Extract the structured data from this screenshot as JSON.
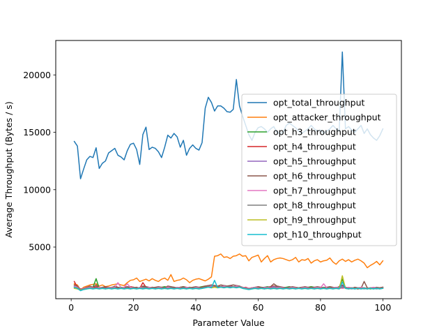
{
  "chart_data": {
    "type": "line",
    "xlabel": "Parameter Value",
    "ylabel": "Average Throughput (Bytes / s)",
    "xlim": [
      -4.95,
      105.95
    ],
    "ylim": [
      500,
      23000
    ],
    "xticks": [
      0,
      20,
      40,
      60,
      80,
      100
    ],
    "yticks": [
      5000,
      10000,
      15000,
      20000
    ],
    "legend_position": "center-right",
    "x": [
      1,
      2,
      3,
      4,
      5,
      6,
      7,
      8,
      9,
      10,
      11,
      12,
      13,
      14,
      15,
      16,
      17,
      18,
      19,
      20,
      21,
      22,
      23,
      24,
      25,
      26,
      27,
      28,
      29,
      30,
      31,
      32,
      33,
      34,
      35,
      36,
      37,
      38,
      39,
      40,
      41,
      42,
      43,
      44,
      45,
      46,
      47,
      48,
      49,
      50,
      51,
      52,
      53,
      54,
      55,
      56,
      57,
      58,
      59,
      60,
      61,
      62,
      63,
      64,
      65,
      66,
      67,
      68,
      69,
      70,
      71,
      72,
      73,
      74,
      75,
      76,
      77,
      78,
      79,
      80,
      81,
      82,
      83,
      84,
      85,
      86,
      87,
      88,
      89,
      90,
      91,
      92,
      93,
      94,
      95,
      96,
      97,
      98,
      99,
      100
    ],
    "series": [
      {
        "name": "opt_total_throughput",
        "color": "#1f77b4",
        "values": [
          14200,
          13800,
          10950,
          11800,
          12600,
          12900,
          12800,
          13650,
          11850,
          12300,
          12500,
          13200,
          13400,
          13600,
          13000,
          12850,
          12600,
          13400,
          13950,
          14050,
          13500,
          12200,
          14800,
          15450,
          13500,
          13700,
          13600,
          13300,
          12800,
          13700,
          14750,
          14500,
          14900,
          14600,
          13700,
          14300,
          13000,
          13600,
          13900,
          13600,
          13450,
          14100,
          17100,
          18050,
          17600,
          16850,
          17300,
          17300,
          17100,
          16800,
          16750,
          17000,
          19600,
          17300,
          16400,
          15600,
          14800,
          14300,
          15000,
          15400,
          15500,
          15300,
          15000,
          15300,
          15500,
          15000,
          14900,
          15000,
          15600,
          15800,
          15600,
          15400,
          15100,
          14900,
          15100,
          15300,
          15600,
          15300,
          15100,
          15200,
          14900,
          15100,
          15300,
          15600,
          15300,
          15100,
          22000,
          15300,
          15500,
          15200,
          15000,
          15300,
          15600,
          14900,
          15300,
          14800,
          14500,
          14300,
          14700,
          15300
        ]
      },
      {
        "name": "opt_attacker_throughput",
        "color": "#ff7f0e",
        "values": [
          1800,
          1700,
          1250,
          1500,
          1600,
          1700,
          1750,
          1800,
          1600,
          1700,
          1550,
          1600,
          1700,
          1750,
          1800,
          1700,
          1650,
          1900,
          2100,
          2150,
          2300,
          2000,
          2100,
          2200,
          2050,
          2250,
          2100,
          2000,
          2200,
          2300,
          2100,
          2600,
          2000,
          2100,
          2150,
          2300,
          2150,
          1900,
          2100,
          2200,
          2250,
          2150,
          2050,
          2200,
          2400,
          4200,
          4250,
          4400,
          4100,
          4150,
          4000,
          4200,
          4250,
          4400,
          4200,
          4250,
          3800,
          4100,
          4200,
          4300,
          3700,
          4000,
          4250,
          3700,
          3900,
          4000,
          4050,
          4000,
          3900,
          3800,
          3900,
          4100,
          3700,
          3900,
          3850,
          4000,
          3600,
          3800,
          3900,
          3700,
          3800,
          3850,
          4050,
          3700,
          3500,
          3800,
          3950,
          3750,
          3900,
          3700,
          3850,
          3950,
          3800,
          3600,
          3200,
          3400,
          3550,
          3750,
          3450,
          3800
        ]
      },
      {
        "name": "opt_h3_throughput",
        "color": "#2ca02c",
        "values": [
          1600,
          1450,
          1300,
          1400,
          1500,
          1450,
          1500,
          2250,
          1400,
          1450,
          1500,
          1450,
          1500,
          1550,
          1400,
          1500,
          1450,
          1500,
          1550,
          1500,
          1450,
          1400,
          1550,
          1500,
          1450,
          1500,
          1450,
          1400,
          1500,
          1550,
          1500,
          1450,
          1500,
          1450,
          1500,
          1550,
          1450,
          1500,
          1400,
          1450,
          1500,
          1550,
          1600,
          1500,
          1550,
          1600,
          1500,
          1550,
          1650,
          1600,
          1550,
          1500,
          1600,
          1550,
          1500,
          1450,
          1400,
          1450,
          1500,
          1400,
          1450,
          1500,
          1550,
          1500,
          1600,
          1550,
          1500,
          1450,
          1500,
          1550,
          1500,
          1450,
          1400,
          1500,
          1450,
          1500,
          1550,
          1500,
          1450,
          1400,
          1500,
          1450,
          1500,
          1400,
          1450,
          1500,
          2200,
          1450,
          1400,
          1450,
          1400,
          1350,
          1400,
          1450,
          1400,
          1350,
          1400,
          1450,
          1400,
          1450
        ]
      },
      {
        "name": "opt_h4_throughput",
        "color": "#d62728",
        "values": [
          2000,
          1500,
          1350,
          1400,
          1500,
          1400,
          1450,
          1550,
          1450,
          1400,
          1500,
          1450,
          1400,
          1500,
          1450,
          1400,
          1500,
          1450,
          1550,
          1500,
          1450,
          1400,
          1900,
          1500,
          1450,
          1500,
          1450,
          1400,
          1500,
          1450,
          1500,
          1450,
          1500,
          1450,
          1500,
          1450,
          1400,
          1500,
          1450,
          1500,
          1450,
          1500,
          1600,
          1550,
          1500,
          1650,
          1600,
          1550,
          1600,
          1550,
          1600,
          1550,
          1500,
          1550,
          1450,
          1500,
          1400,
          1450,
          1400,
          1450,
          1500,
          1450,
          1500,
          1550,
          1600,
          1500,
          1450,
          1400,
          1450,
          1500,
          1450,
          1400,
          1450,
          1500,
          1400,
          1450,
          1500,
          1400,
          1450,
          1500,
          1450,
          1400,
          1500,
          1450,
          1500,
          1400,
          1450,
          1500,
          1400,
          1450,
          1400,
          1350,
          1450,
          1400,
          1350,
          1400,
          1450,
          1400,
          1450,
          1500
        ]
      },
      {
        "name": "opt_h5_throughput",
        "color": "#9467bd",
        "values": [
          1500,
          1400,
          1250,
          1350,
          1400,
          1450,
          1400,
          1450,
          1400,
          1450,
          1400,
          1450,
          1500,
          1450,
          1400,
          1450,
          1500,
          1450,
          1400,
          1450,
          1500,
          1400,
          1450,
          1500,
          1450,
          1400,
          1450,
          1500,
          1450,
          1400,
          1450,
          1500,
          1450,
          1400,
          1450,
          1500,
          1450,
          1400,
          1450,
          1500,
          1450,
          1400,
          1500,
          1550,
          1600,
          1550,
          1500,
          1550,
          1600,
          1550,
          1600,
          1500,
          1550,
          1500,
          1450,
          1400,
          1350,
          1400,
          1450,
          1400,
          1450,
          1500,
          1450,
          1500,
          1550,
          1500,
          1450,
          1400,
          1450,
          1500,
          1450,
          1400,
          1450,
          1500,
          1450,
          1400,
          1450,
          1500,
          1450,
          1400,
          1450,
          1500,
          1450,
          1400,
          1450,
          1500,
          1600,
          1450,
          1400,
          1350,
          1400,
          1450,
          1400,
          1350,
          1400,
          1450,
          1400,
          1350,
          1400,
          1450
        ]
      },
      {
        "name": "opt_h6_throughput",
        "color": "#8c564b",
        "values": [
          1700,
          1600,
          1300,
          1400,
          1500,
          1600,
          1500,
          1700,
          1450,
          1500,
          1550,
          1500,
          1450,
          1600,
          1500,
          1450,
          1500,
          1550,
          1500,
          1450,
          1500,
          1400,
          1600,
          1550,
          1500,
          1450,
          1500,
          1550,
          1500,
          1450,
          1600,
          1550,
          1500,
          1450,
          1500,
          1550,
          1500,
          1450,
          1500,
          1550,
          1500,
          1450,
          1600,
          1650,
          1700,
          1650,
          1600,
          1700,
          1650,
          1600,
          1650,
          1700,
          1650,
          1600,
          1500,
          1450,
          1400,
          1450,
          1500,
          1550,
          1500,
          1450,
          1500,
          1550,
          1800,
          1600,
          1550,
          1500,
          1450,
          1500,
          1550,
          1500,
          1450,
          1500,
          1550,
          1500,
          1450,
          1500,
          1550,
          1500,
          1450,
          1500,
          1550,
          1500,
          1450,
          1550,
          1700,
          1500,
          1450,
          1400,
          1500,
          1450,
          1400,
          2000,
          1450,
          1400,
          1450,
          1500,
          1450,
          1500
        ]
      },
      {
        "name": "opt_h7_throughput",
        "color": "#e377c2",
        "values": [
          1600,
          1500,
          1300,
          1400,
          1450,
          1500,
          1450,
          1400,
          1500,
          1450,
          1400,
          1500,
          1450,
          1500,
          1900,
          1450,
          1500,
          1800,
          1500,
          1450,
          1400,
          1500,
          1450,
          1400,
          1500,
          1450,
          1400,
          1500,
          1450,
          1400,
          1500,
          1450,
          1400,
          1500,
          1450,
          1400,
          1500,
          1450,
          1400,
          1500,
          1450,
          1400,
          1500,
          1550,
          1600,
          1550,
          1500,
          1550,
          1600,
          1550,
          1500,
          1550,
          1600,
          1550,
          1500,
          1450,
          1400,
          1450,
          1500,
          1450,
          1400,
          1450,
          1500,
          1450,
          1400,
          1450,
          1500,
          1450,
          1400,
          1450,
          1500,
          1450,
          1400,
          1450,
          1500,
          1450,
          1400,
          1450,
          1500,
          1450,
          1800,
          1450,
          1400,
          1450,
          1500,
          1450,
          1400,
          1450,
          1500,
          1450,
          1400,
          1450,
          1500,
          1450,
          1400,
          1450,
          1500,
          1450,
          1400,
          1450
        ]
      },
      {
        "name": "opt_h8_throughput",
        "color": "#7f7f7f",
        "values": [
          1500,
          1450,
          1300,
          1350,
          1400,
          1450,
          1400,
          1450,
          1400,
          1450,
          1400,
          1450,
          1400,
          1450,
          1400,
          1450,
          1400,
          1450,
          1400,
          1450,
          1400,
          1450,
          1400,
          1450,
          1400,
          1450,
          1400,
          1450,
          1400,
          1450,
          1400,
          1450,
          1400,
          1450,
          1400,
          1450,
          1400,
          1450,
          1400,
          1450,
          1400,
          1450,
          1500,
          1550,
          1500,
          1550,
          1500,
          1550,
          1500,
          1550,
          1500,
          1550,
          1500,
          1550,
          1450,
          1400,
          1350,
          1400,
          1450,
          1400,
          1450,
          1400,
          1450,
          1400,
          1450,
          1400,
          1450,
          1400,
          1450,
          1400,
          1450,
          1400,
          1450,
          1400,
          1450,
          1400,
          1450,
          1400,
          1450,
          1400,
          1450,
          1400,
          1450,
          1400,
          1450,
          1400,
          1500,
          1450,
          1400,
          1450,
          1400,
          1450,
          1400,
          1450,
          1400,
          1450,
          1400,
          1450,
          1400,
          1450
        ]
      },
      {
        "name": "opt_h9_throughput",
        "color": "#bcbd22",
        "values": [
          1400,
          1350,
          1250,
          1300,
          1350,
          1400,
          1350,
          1400,
          1350,
          1400,
          1350,
          1400,
          1350,
          1400,
          1350,
          1400,
          1350,
          1400,
          1350,
          1400,
          1350,
          1400,
          1350,
          1400,
          1350,
          1400,
          1350,
          1400,
          1350,
          1400,
          1350,
          1400,
          1350,
          1400,
          1350,
          1400,
          1350,
          1400,
          1350,
          1400,
          1350,
          1400,
          1450,
          1500,
          1450,
          1500,
          1450,
          1500,
          1450,
          1500,
          1450,
          1500,
          1450,
          1500,
          1400,
          1350,
          1300,
          1350,
          1400,
          1350,
          1400,
          1350,
          1400,
          1350,
          1400,
          1350,
          1400,
          1350,
          1400,
          1350,
          1400,
          1350,
          1400,
          1350,
          1400,
          1350,
          1400,
          1350,
          1400,
          1350,
          1400,
          1350,
          1400,
          1350,
          1400,
          1350,
          2500,
          1400,
          1350,
          1400,
          1350,
          1400,
          1350,
          1400,
          1350,
          1400,
          1350,
          1400,
          1350,
          1400
        ]
      },
      {
        "name": "opt_h10_throughput",
        "color": "#17becf",
        "values": [
          1500,
          1400,
          1200,
          1300,
          1350,
          1400,
          1350,
          1400,
          1350,
          1400,
          1350,
          1400,
          1350,
          1400,
          1350,
          1400,
          1350,
          1400,
          1350,
          1400,
          1350,
          1400,
          1350,
          1400,
          1350,
          1400,
          1350,
          1400,
          1350,
          1400,
          1350,
          1400,
          1350,
          1400,
          1350,
          1400,
          1350,
          1400,
          1350,
          1400,
          1350,
          1400,
          1450,
          1500,
          1450,
          2100,
          1450,
          1500,
          1450,
          1500,
          1450,
          1500,
          1450,
          1500,
          1400,
          1350,
          1300,
          1350,
          1400,
          1350,
          1400,
          1350,
          1400,
          1350,
          1400,
          1350,
          1400,
          1350,
          1400,
          1350,
          1400,
          1350,
          1400,
          1350,
          1400,
          1350,
          1400,
          1350,
          1400,
          1350,
          1400,
          1350,
          1400,
          1350,
          1400,
          1350,
          1950,
          1400,
          1350,
          1400,
          1350,
          1400,
          1350,
          1400,
          1350,
          1400,
          1350,
          1400,
          1350,
          1400
        ]
      }
    ]
  }
}
